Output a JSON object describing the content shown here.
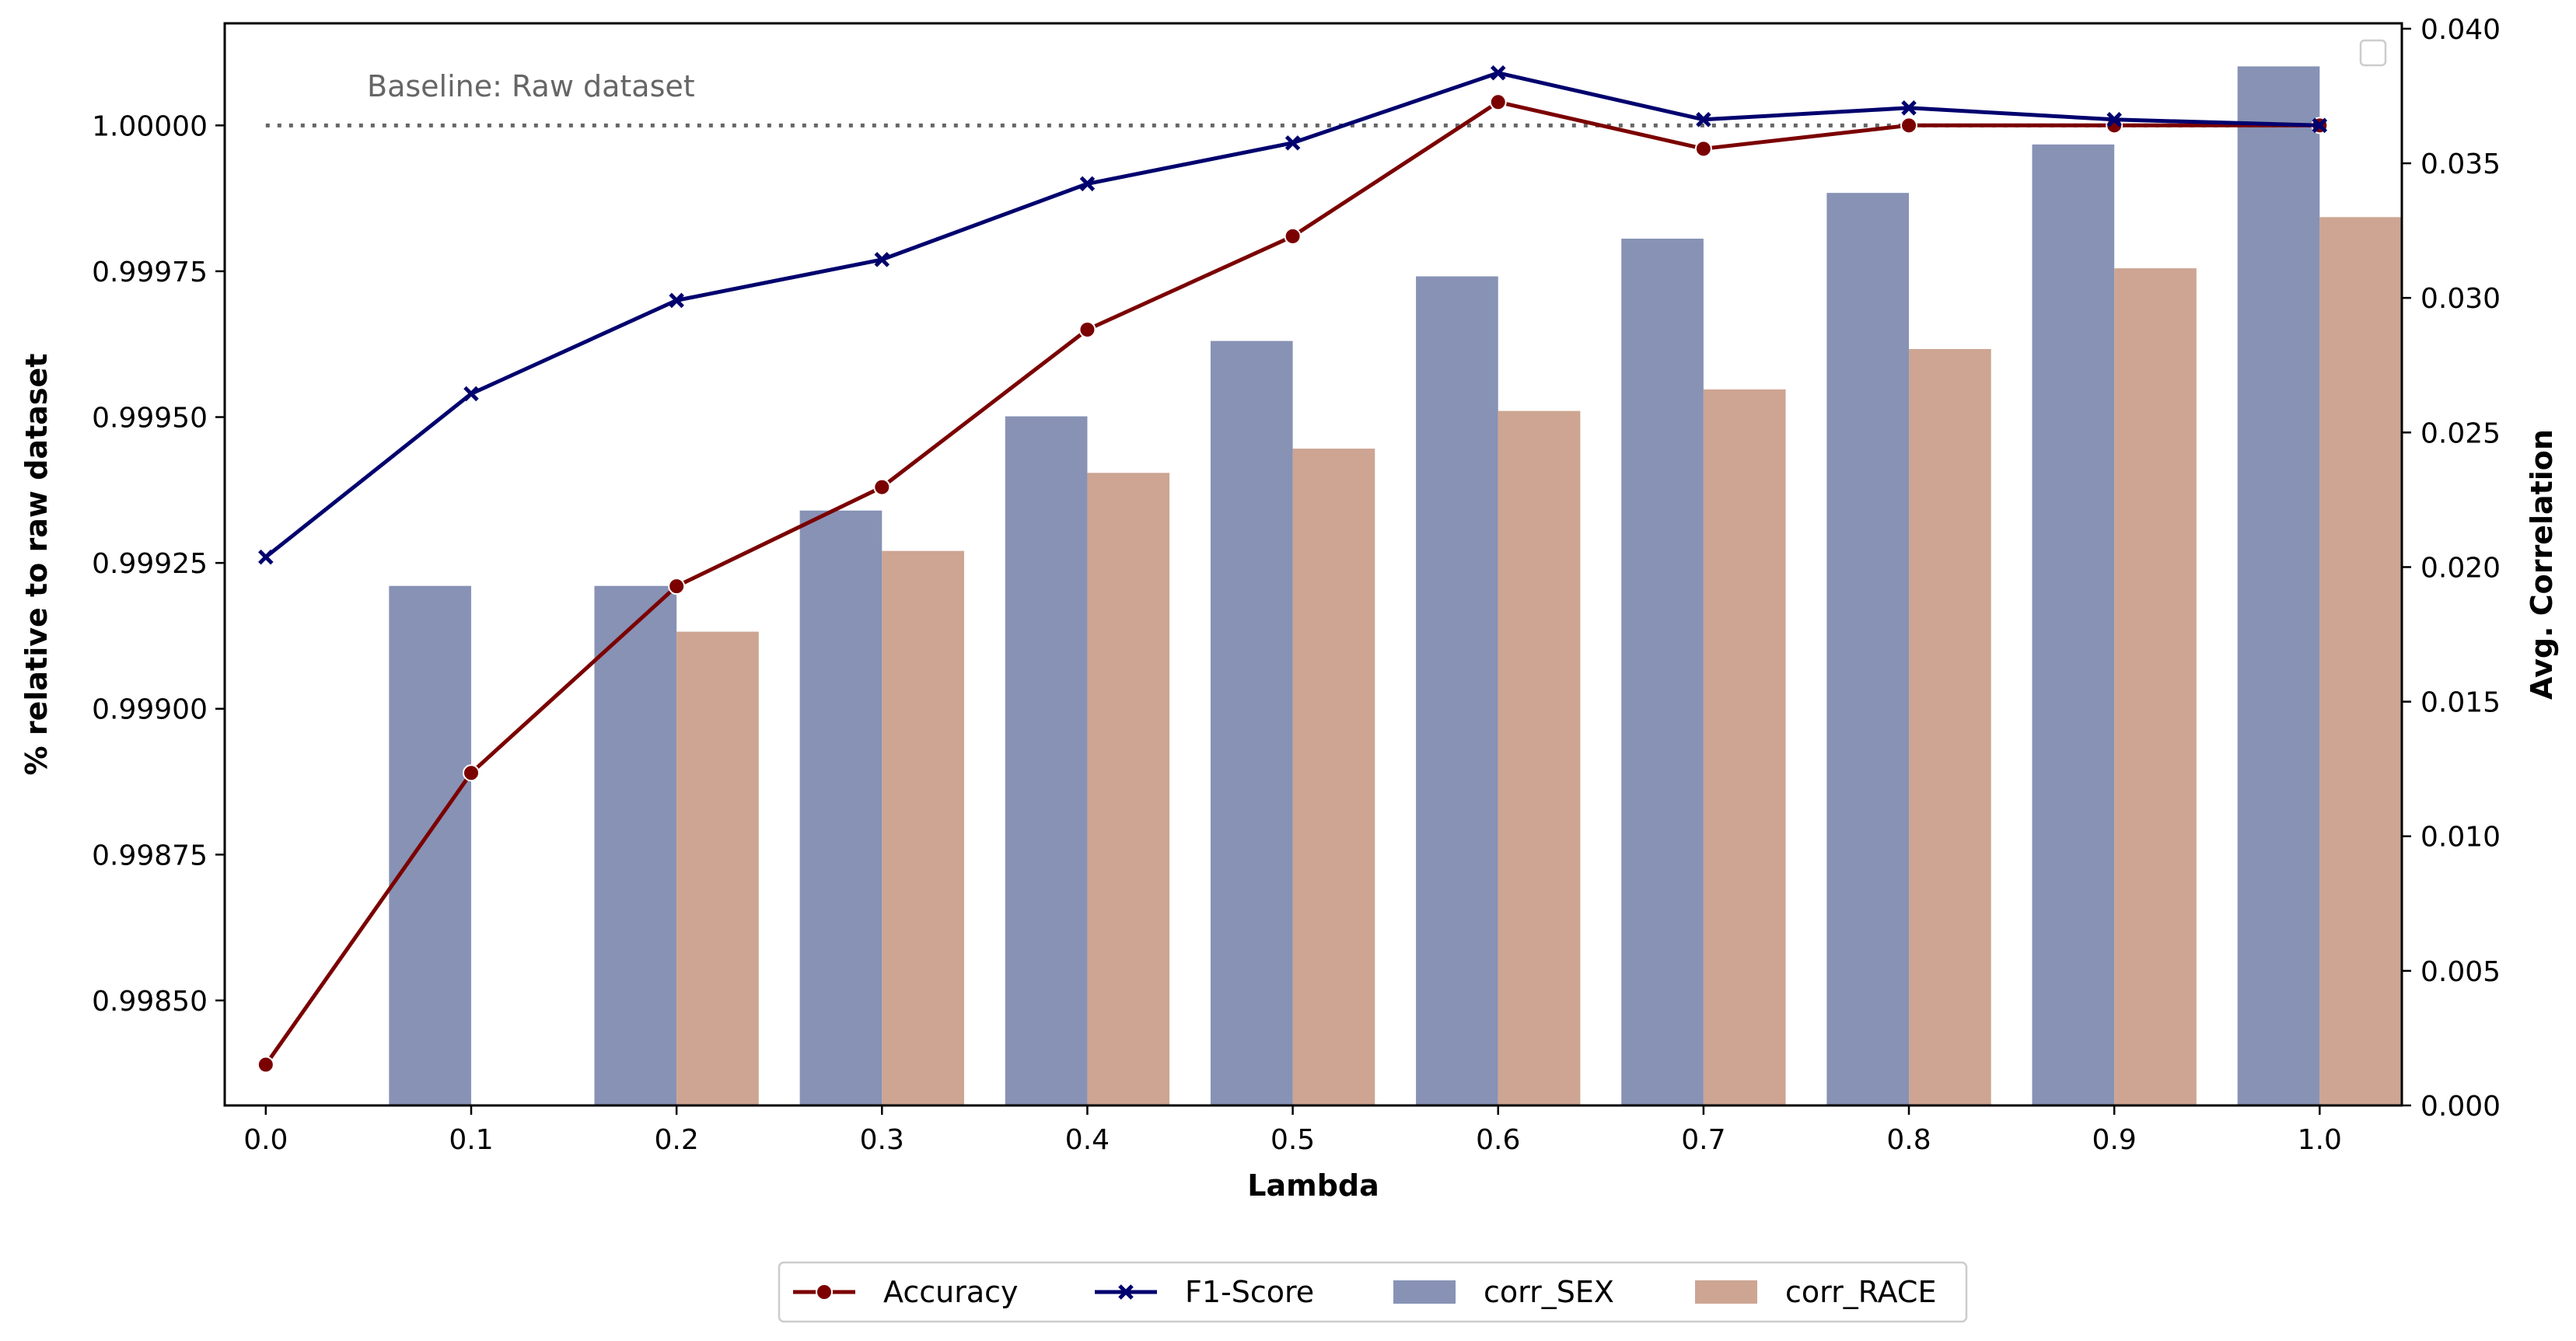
{
  "chart_data": {
    "type": "bar",
    "categories": [
      "0.0",
      "0.1",
      "0.2",
      "0.3",
      "0.4",
      "0.5",
      "0.6",
      "0.7",
      "0.8",
      "0.9",
      "1.0"
    ],
    "x": [
      0.0,
      0.1,
      0.2,
      0.3,
      0.4,
      0.5,
      0.6,
      0.7,
      0.8,
      0.9,
      1.0
    ],
    "xlabel": "Lambda",
    "ylabel_left": "% relative to raw dataset",
    "ylabel_right": "Avg. Correlation",
    "xlim": [
      -0.02,
      1.04
    ],
    "ylim_left": [
      0.99832,
      1.000175
    ],
    "ylim_right": [
      0.0,
      0.0402
    ],
    "xticks": [
      "0.0",
      "0.1",
      "0.2",
      "0.3",
      "0.4",
      "0.5",
      "0.6",
      "0.7",
      "0.8",
      "0.9",
      "1.0"
    ],
    "yticks_left": [
      "0.99850",
      "0.99875",
      "0.99900",
      "0.99925",
      "0.99950",
      "0.99975",
      "1.00000"
    ],
    "yticks_right": [
      "0.000",
      "0.005",
      "0.010",
      "0.015",
      "0.020",
      "0.025",
      "0.030",
      "0.035",
      "0.040"
    ],
    "grid": false,
    "legend_position": "bottom-center",
    "baseline": {
      "value": 1.0,
      "label": "Baseline: Raw dataset",
      "style": "dotted",
      "color": "#666666"
    },
    "line_series": [
      {
        "name": "Accuracy",
        "axis": "left",
        "marker": "circle",
        "color": "#7b0000",
        "values": [
          0.99839,
          0.99889,
          0.99921,
          0.99938,
          0.99965,
          0.99981,
          1.00004,
          0.99996,
          1.0,
          1.0,
          1.0
        ]
      },
      {
        "name": "F1-Score",
        "axis": "left",
        "marker": "x",
        "color": "#00006e",
        "values": [
          0.99926,
          0.99954,
          0.9997,
          0.99977,
          0.9999,
          0.99997,
          1.00009,
          1.00001,
          1.00003,
          1.00001,
          1.0
        ]
      }
    ],
    "series": [
      {
        "name": "corr_SEX",
        "axis": "right",
        "color": "#8792b5",
        "values": [
          null,
          0.0193,
          0.0193,
          0.0221,
          0.0256,
          0.0284,
          0.0308,
          0.0322,
          0.0339,
          0.0357,
          0.0386
        ]
      },
      {
        "name": "corr_RACE",
        "axis": "right",
        "color": "#cda592",
        "values": [
          null,
          null,
          0.0176,
          0.0206,
          0.0235,
          0.0244,
          0.0258,
          0.0266,
          0.0281,
          0.0311,
          0.033
        ]
      }
    ]
  }
}
